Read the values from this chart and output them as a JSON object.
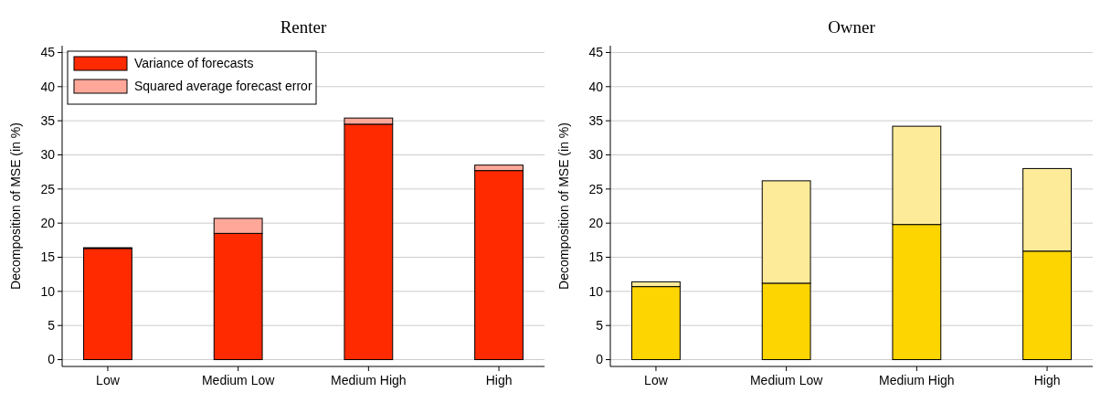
{
  "chart_data": [
    {
      "type": "bar",
      "title": "Renter",
      "ylabel": "Decomposition of MSE (in %)",
      "categories": [
        "Low",
        "Medium Low",
        "Medium High",
        "High"
      ],
      "stacked": true,
      "series": [
        {
          "name": "Variance of forecasts",
          "color": "#ff2a00",
          "values": [
            16.3,
            18.5,
            34.5,
            27.7
          ]
        },
        {
          "name": "Squared average forecast error",
          "color": "#ffa89a",
          "values": [
            0.1,
            2.2,
            0.9,
            0.8
          ]
        }
      ],
      "ylim": [
        -1,
        46
      ],
      "yticks": [
        0,
        5,
        10,
        15,
        20,
        25,
        30,
        35,
        40,
        45
      ],
      "grid": "y",
      "legend": "top left"
    },
    {
      "type": "bar",
      "title": "Owner",
      "ylabel": "Decomposition of MSE (in %)",
      "categories": [
        "Low",
        "Medium Low",
        "Medium High",
        "High"
      ],
      "stacked": true,
      "series": [
        {
          "color": "#fdd500",
          "values": [
            10.7,
            11.2,
            19.8,
            15.9
          ]
        },
        {
          "color": "#fdeb9a",
          "values": [
            0.7,
            15.0,
            14.4,
            12.1
          ]
        }
      ],
      "ylim": [
        -1,
        46
      ],
      "yticks": [
        0,
        5,
        10,
        15,
        20,
        25,
        30,
        35,
        40,
        45
      ],
      "grid": "y"
    }
  ]
}
